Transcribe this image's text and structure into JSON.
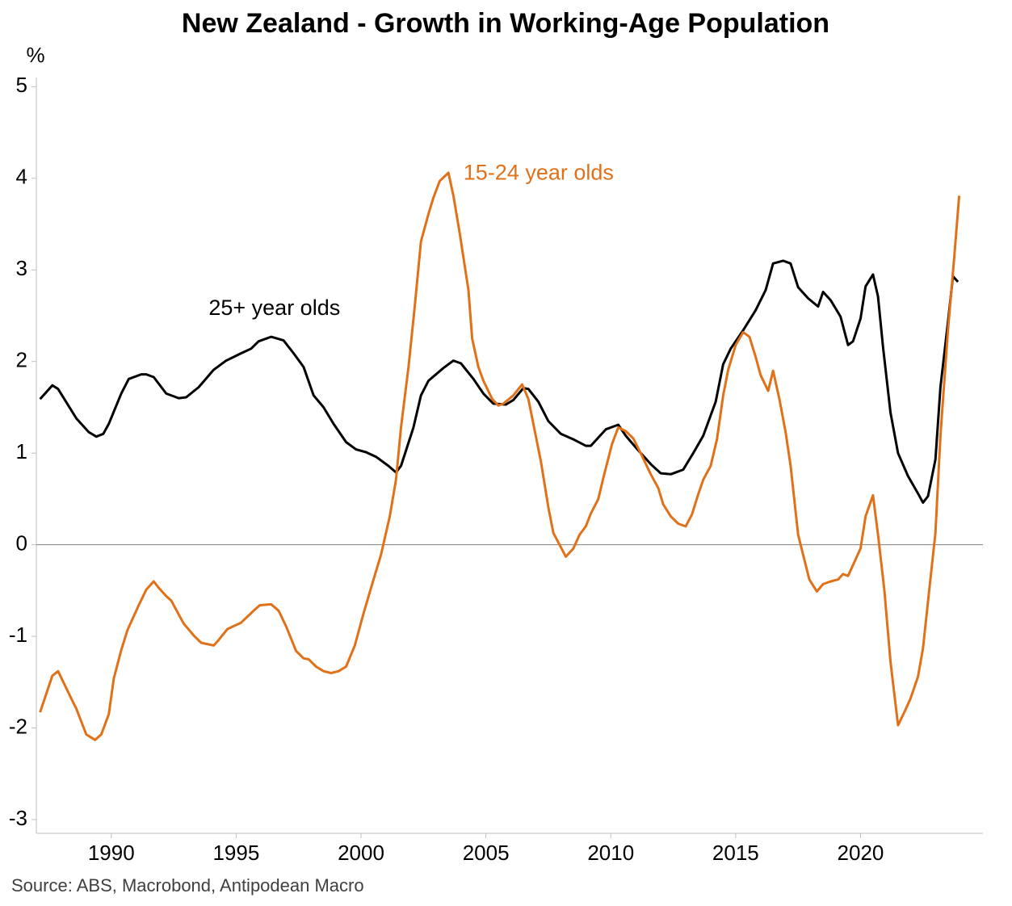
{
  "chart_data": {
    "type": "line",
    "title": "New Zealand - Growth in Working-Age Population",
    "y_label": "%",
    "source": "Source: ABS, Macrobond, Antipodean Macro",
    "xlim": [
      1987,
      2024.9
    ],
    "xticks": [
      1990,
      1995,
      2000,
      2005,
      2010,
      2015,
      2020
    ],
    "ylim": [
      -3.15,
      5.1
    ],
    "yticks": [
      -3,
      -2,
      -1,
      0,
      1,
      2,
      3,
      4,
      5
    ],
    "series": [
      {
        "name": "25+ year olds",
        "color": "#000000",
        "x": [
          1987.15,
          1987.64,
          1987.87,
          1988.6,
          1989.1,
          1989.4,
          1989.68,
          1989.9,
          1990.4,
          1990.7,
          1991.2,
          1991.4,
          1991.7,
          1992.2,
          1992.7,
          1993.0,
          1993.5,
          1994.1,
          1994.6,
          1995.2,
          1995.6,
          1995.9,
          1996.4,
          1996.9,
          1997.3,
          1997.7,
          1998.1,
          1998.5,
          1998.9,
          1999.4,
          1999.8,
          2000.2,
          2000.6,
          2001.1,
          2001.4,
          2001.6,
          2002.1,
          2002.4,
          2002.7,
          2003.3,
          2003.7,
          2004.0,
          2004.5,
          2004.9,
          2005.3,
          2005.8,
          2006.1,
          2006.5,
          2006.7,
          2007.1,
          2007.5,
          2008.0,
          2008.5,
          2009.0,
          2009.2,
          2009.8,
          2010.3,
          2010.6,
          2011.1,
          2011.6,
          2012.0,
          2012.4,
          2012.9,
          2013.3,
          2013.7,
          2014.2,
          2014.5,
          2014.8,
          2015.3,
          2015.8,
          2016.2,
          2016.5,
          2016.9,
          2017.2,
          2017.5,
          2017.9,
          2018.3,
          2018.5,
          2018.8,
          2019.2,
          2019.5,
          2019.7,
          2020.0,
          2020.2,
          2020.5,
          2020.7,
          2020.9,
          2021.2,
          2021.5,
          2021.9,
          2022.3,
          2022.5,
          2022.7,
          2023.0,
          2023.2,
          2023.5,
          2023.7,
          2023.9
        ],
        "values": [
          1.59,
          1.74,
          1.7,
          1.38,
          1.23,
          1.18,
          1.21,
          1.32,
          1.65,
          1.81,
          1.86,
          1.86,
          1.83,
          1.65,
          1.6,
          1.61,
          1.72,
          1.91,
          2.01,
          2.09,
          2.14,
          2.22,
          2.27,
          2.23,
          2.09,
          1.94,
          1.63,
          1.5,
          1.32,
          1.12,
          1.04,
          1.01,
          0.96,
          0.86,
          0.79,
          0.86,
          1.28,
          1.63,
          1.79,
          1.93,
          2.01,
          1.98,
          1.81,
          1.65,
          1.54,
          1.53,
          1.58,
          1.71,
          1.7,
          1.56,
          1.35,
          1.21,
          1.15,
          1.08,
          1.08,
          1.26,
          1.31,
          1.19,
          1.03,
          0.88,
          0.78,
          0.77,
          0.82,
          1.0,
          1.19,
          1.56,
          1.97,
          2.14,
          2.34,
          2.56,
          2.78,
          3.07,
          3.1,
          3.07,
          2.81,
          2.69,
          2.6,
          2.76,
          2.67,
          2.49,
          2.18,
          2.22,
          2.47,
          2.82,
          2.95,
          2.71,
          2.16,
          1.44,
          1.0,
          0.75,
          0.56,
          0.46,
          0.53,
          0.93,
          1.72,
          2.43,
          2.93,
          2.87
        ]
      },
      {
        "name": "15-24 year olds",
        "color": "#e07119",
        "x": [
          1987.15,
          1987.64,
          1987.87,
          1988.4,
          1988.6,
          1989.0,
          1989.35,
          1989.6,
          1989.9,
          1990.1,
          1990.4,
          1990.65,
          1991.1,
          1991.4,
          1991.7,
          1991.9,
          1992.2,
          1992.4,
          1992.9,
          1993.3,
          1993.6,
          1994.1,
          1994.3,
          1994.65,
          1995.2,
          1995.7,
          1995.95,
          1996.4,
          1996.7,
          1997.0,
          1997.4,
          1997.7,
          1997.9,
          1998.2,
          1998.5,
          1998.8,
          1999.1,
          1999.4,
          1999.75,
          2000.1,
          2000.5,
          2000.8,
          2001.15,
          2001.4,
          2001.6,
          2001.9,
          2002.15,
          2002.4,
          2002.7,
          2002.9,
          2003.15,
          2003.5,
          2003.7,
          2003.95,
          2004.3,
          2004.45,
          2004.7,
          2004.9,
          2005.25,
          2005.5,
          2005.7,
          2006.1,
          2006.45,
          2006.7,
          2006.9,
          2007.2,
          2007.5,
          2007.7,
          2007.95,
          2008.2,
          2008.5,
          2008.75,
          2009.0,
          2009.2,
          2009.5,
          2009.7,
          2010.05,
          2010.3,
          2010.6,
          2010.9,
          2011.25,
          2011.6,
          2011.9,
          2012.1,
          2012.4,
          2012.7,
          2013.0,
          2013.25,
          2013.5,
          2013.7,
          2014.0,
          2014.25,
          2014.5,
          2014.7,
          2015.0,
          2015.3,
          2015.55,
          2015.8,
          2016.0,
          2016.3,
          2016.5,
          2016.75,
          2017.0,
          2017.2,
          2017.5,
          2017.7,
          2017.95,
          2018.25,
          2018.5,
          2018.8,
          2019.1,
          2019.3,
          2019.5,
          2019.7,
          2020.0,
          2020.2,
          2020.5,
          2020.7,
          2020.95,
          2021.2,
          2021.5,
          2021.75,
          2022.0,
          2022.3,
          2022.5,
          2022.7,
          2023.0,
          2023.2,
          2023.5,
          2023.75,
          2023.95
        ],
        "values": [
          -1.83,
          -1.43,
          -1.38,
          -1.68,
          -1.79,
          -2.07,
          -2.13,
          -2.07,
          -1.85,
          -1.46,
          -1.15,
          -0.93,
          -0.66,
          -0.49,
          -0.4,
          -0.47,
          -0.56,
          -0.61,
          -0.86,
          -0.99,
          -1.07,
          -1.1,
          -1.04,
          -0.92,
          -0.85,
          -0.72,
          -0.66,
          -0.65,
          -0.72,
          -0.89,
          -1.16,
          -1.24,
          -1.25,
          -1.33,
          -1.38,
          -1.4,
          -1.38,
          -1.33,
          -1.1,
          -0.75,
          -0.38,
          -0.11,
          0.31,
          0.71,
          1.28,
          1.94,
          2.6,
          3.31,
          3.61,
          3.79,
          3.97,
          4.06,
          3.81,
          3.4,
          2.78,
          2.25,
          1.94,
          1.79,
          1.59,
          1.52,
          1.54,
          1.63,
          1.75,
          1.59,
          1.32,
          0.91,
          0.41,
          0.13,
          0.0,
          -0.13,
          -0.04,
          0.11,
          0.2,
          0.34,
          0.5,
          0.73,
          1.1,
          1.28,
          1.24,
          1.16,
          0.97,
          0.77,
          0.62,
          0.44,
          0.31,
          0.23,
          0.2,
          0.33,
          0.55,
          0.71,
          0.86,
          1.15,
          1.63,
          1.91,
          2.18,
          2.32,
          2.27,
          2.05,
          1.85,
          1.68,
          1.9,
          1.59,
          1.23,
          0.86,
          0.11,
          -0.11,
          -0.38,
          -0.51,
          -0.43,
          -0.4,
          -0.38,
          -0.32,
          -0.34,
          -0.22,
          -0.04,
          0.31,
          0.54,
          0.11,
          -0.49,
          -1.28,
          -1.97,
          -1.83,
          -1.68,
          -1.44,
          -1.13,
          -0.62,
          0.13,
          1.19,
          2.34,
          3.13,
          3.81
        ]
      }
    ]
  }
}
